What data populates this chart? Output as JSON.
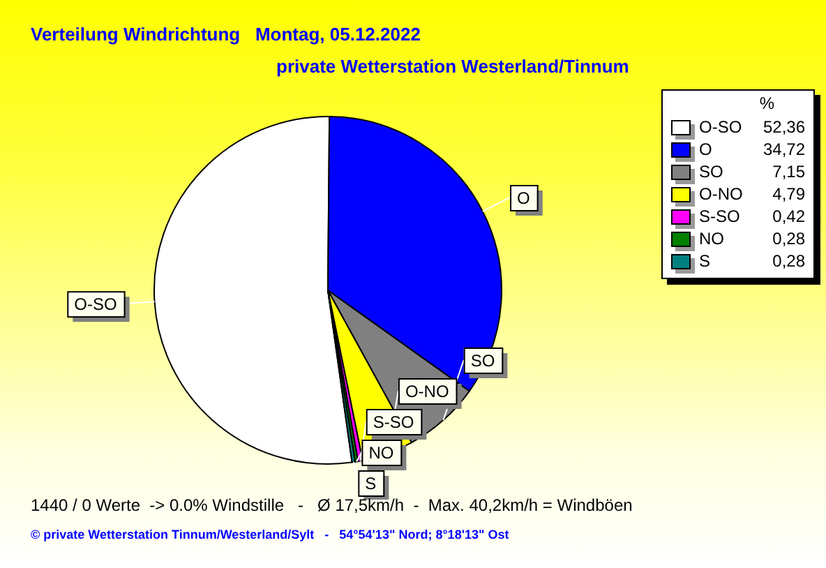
{
  "chart_data": {
    "type": "pie",
    "title": "Verteilung Windrichtung   Montag, 05.12.2022",
    "subtitle": "private Wetterstation Westerland/Tinnum",
    "categories": [
      "O-SO",
      "O",
      "SO",
      "O-NO",
      "S-SO",
      "NO",
      "S"
    ],
    "values": [
      52.36,
      34.72,
      7.15,
      4.79,
      0.42,
      0.28,
      0.28
    ],
    "colors": [
      "#ffffff",
      "#0000ff",
      "#808080",
      "#ffff00",
      "#ff00ff",
      "#008000",
      "#008080"
    ],
    "value_labels": [
      "52,36",
      "34,72",
      "7,15",
      "4,79",
      "0,42",
      "0,28",
      "0,28"
    ],
    "legend": "top right",
    "legend_title": "%",
    "annotations": [
      "1440 / 0 Werte  -> 0.0% Windstille   -   Ø 17,5km/h  -  Max. 40,2km/h = Windböen",
      "© private Wetterstation Tinnum/Westerland/Sylt   -   54°54'13\" Nord; 8°18'13\" Ost"
    ]
  }
}
